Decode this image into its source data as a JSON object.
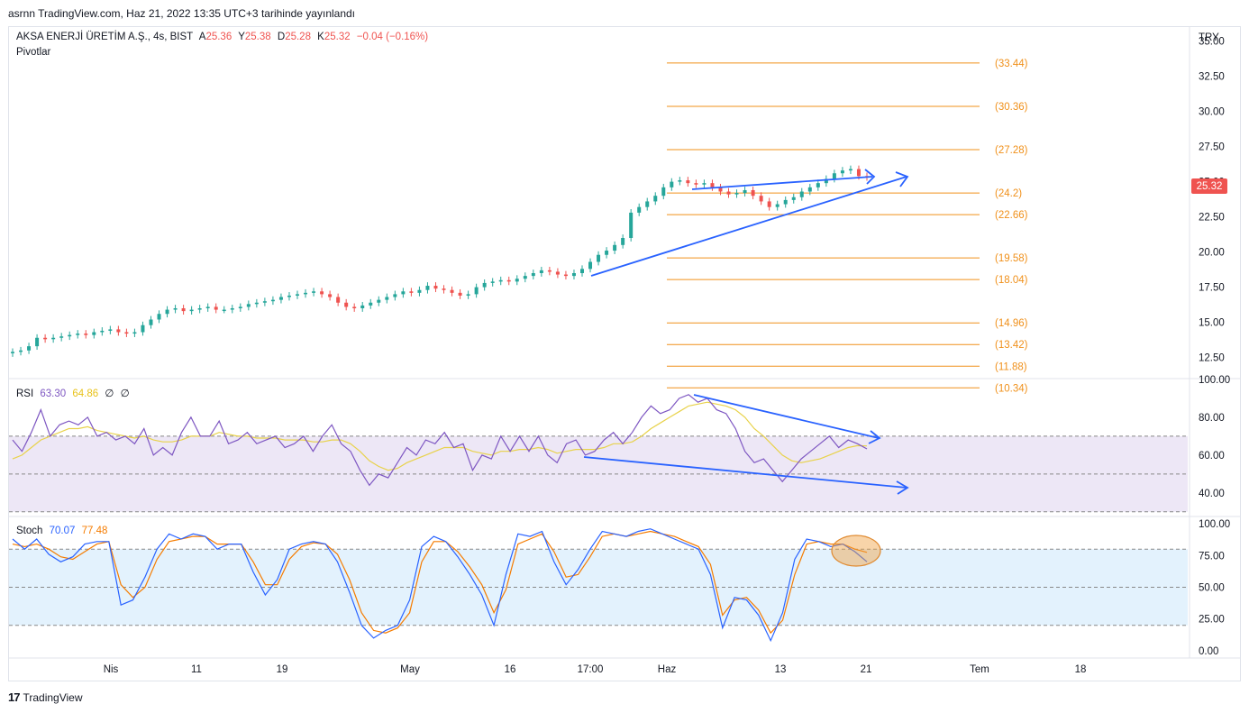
{
  "header": {
    "published": "asrnn TradingView.com, Haz 21, 2022 13:35 UTC+3 tarihinde yayınlandı"
  },
  "footer": {
    "brand": "TradingView"
  },
  "colors": {
    "up": "#26a69a",
    "down": "#ef5350",
    "pivot": "#f0901a",
    "trend": "#2962ff",
    "rsi": "#7e57c2",
    "rsi_ma": "#e8d24a",
    "stoch_k": "#2962ff",
    "stoch_d": "#f57c00",
    "rsi_bg": "#ede7f6",
    "stoch_bg": "#e3f2fd",
    "price_badge": "#ef5350"
  },
  "main": {
    "symbol": "AKSA ENERJİ ÜRETİM A.Ş., 4s, BIST",
    "o_label": "A",
    "o": "25.36",
    "h_label": "Y",
    "h": "25.38",
    "l_label": "D",
    "l": "25.28",
    "c_label": "K",
    "c": "25.32",
    "change": "−0.04 (−0.16%)",
    "indicator": "Pivotlar",
    "currency": "TRY",
    "last_price": "25.32"
  },
  "rsi": {
    "label": "RSI",
    "value": "63.30",
    "ma": "64.86",
    "extra1": "∅",
    "extra2": "∅"
  },
  "stoch": {
    "label": "Stoch",
    "k": "70.07",
    "d": "77.48"
  },
  "chart_data": [
    {
      "type": "candlestick",
      "title": "AKSA ENERJİ ÜRETİM A.Ş., 4s, BIST",
      "ylim": [
        11,
        36
      ],
      "price_ticks": [
        "35.00",
        "32.50",
        "30.00",
        "27.50",
        "25.00",
        "22.50",
        "20.00",
        "17.50",
        "15.00",
        "12.50"
      ],
      "x_ticks": [
        "Nis",
        "11",
        "19",
        "May",
        "16",
        "17:00",
        "Haz",
        "13",
        "21",
        "Tem",
        "18"
      ],
      "close_path": [
        12.9,
        13.0,
        13.3,
        13.9,
        13.8,
        13.9,
        14.0,
        14.1,
        14.2,
        14.1,
        14.3,
        14.4,
        14.5,
        14.3,
        14.2,
        14.3,
        14.8,
        15.2,
        15.6,
        15.9,
        16.0,
        15.8,
        15.9,
        16.0,
        16.1,
        15.9,
        15.9,
        16.0,
        16.1,
        16.3,
        16.4,
        16.5,
        16.6,
        16.8,
        16.9,
        17.0,
        17.1,
        17.2,
        17.0,
        16.8,
        16.4,
        16.1,
        16.0,
        16.2,
        16.4,
        16.6,
        16.8,
        17.0,
        17.2,
        17.1,
        17.3,
        17.6,
        17.4,
        17.3,
        17.1,
        16.9,
        17.0,
        17.5,
        17.8,
        17.9,
        18.0,
        17.9,
        18.1,
        18.3,
        18.5,
        18.7,
        18.6,
        18.4,
        18.3,
        18.5,
        18.8,
        19.3,
        19.8,
        20.1,
        20.5,
        21.0,
        22.8,
        23.2,
        23.6,
        24.0,
        24.6,
        25.0,
        25.1,
        24.9,
        24.8,
        24.9,
        24.6,
        24.3,
        24.1,
        24.2,
        24.4,
        24.0,
        23.6,
        23.2,
        23.4,
        23.7,
        23.9,
        24.3,
        24.6,
        24.9,
        25.2,
        25.6,
        25.8,
        25.9,
        25.4,
        25.32
      ],
      "pivot_levels": [
        {
          "label": "(33.44)",
          "value": 33.44
        },
        {
          "label": "(30.36)",
          "value": 30.36
        },
        {
          "label": "(27.28)",
          "value": 27.28
        },
        {
          "label": "(24.2)",
          "value": 24.2
        },
        {
          "label": "(22.66)",
          "value": 22.66
        },
        {
          "label": "(19.58)",
          "value": 19.58
        },
        {
          "label": "(18.04)",
          "value": 18.04
        },
        {
          "label": "(14.96)",
          "value": 14.96
        },
        {
          "label": "(13.42)",
          "value": 13.42
        },
        {
          "label": "(11.88)",
          "value": 11.88
        },
        {
          "label": "(10.34)",
          "value": 10.34
        }
      ],
      "last_price": 25.32
    },
    {
      "type": "line",
      "title": "RSI",
      "ylim": [
        28,
        100
      ],
      "y_ticks": [
        "100.00",
        "80.00",
        "60.00",
        "40.00"
      ],
      "bands": [
        70,
        50,
        30
      ],
      "series": [
        {
          "name": "RSI",
          "values": [
            68,
            62,
            72,
            84,
            70,
            76,
            78,
            76,
            80,
            70,
            72,
            68,
            70,
            66,
            74,
            60,
            64,
            60,
            72,
            80,
            70,
            70,
            78,
            66,
            68,
            72,
            66,
            68,
            70,
            64,
            66,
            70,
            62,
            70,
            76,
            66,
            62,
            52,
            44,
            50,
            48,
            56,
            64,
            60,
            68,
            66,
            72,
            64,
            66,
            52,
            60,
            58,
            70,
            62,
            70,
            62,
            70,
            60,
            56,
            66,
            68,
            60,
            62,
            68,
            72,
            66,
            72,
            80,
            86,
            82,
            84,
            90,
            92,
            88,
            90,
            84,
            82,
            74,
            62,
            56,
            58,
            52,
            46,
            52,
            58,
            62,
            66,
            70,
            64,
            68,
            66,
            63.3
          ]
        },
        {
          "name": "RSI MA",
          "values": [
            58,
            60,
            64,
            68,
            70,
            72,
            74,
            74,
            75,
            73,
            72,
            71,
            70,
            69,
            70,
            68,
            67,
            67,
            68,
            70,
            70,
            70,
            72,
            71,
            70,
            70,
            69,
            69,
            69,
            68,
            68,
            68,
            67,
            67,
            68,
            68,
            66,
            62,
            57,
            54,
            52,
            53,
            56,
            58,
            60,
            62,
            64,
            64,
            64,
            62,
            61,
            60,
            62,
            62,
            63,
            63,
            64,
            63,
            61,
            62,
            63,
            63,
            63,
            64,
            66,
            66,
            67,
            70,
            74,
            77,
            80,
            83,
            86,
            87,
            88,
            87,
            86,
            84,
            80,
            74,
            70,
            65,
            60,
            57,
            56,
            57,
            58,
            60,
            62,
            64,
            65,
            64.86
          ]
        }
      ]
    },
    {
      "type": "line",
      "title": "Stoch",
      "ylim": [
        -5,
        105
      ],
      "y_ticks": [
        "100.00",
        "75.00",
        "50.00",
        "25.00",
        "0.00"
      ],
      "bands": [
        80,
        50,
        20
      ],
      "series": [
        {
          "name": "%K",
          "values": [
            88,
            80,
            88,
            76,
            70,
            74,
            84,
            86,
            86,
            36,
            40,
            58,
            80,
            92,
            88,
            92,
            90,
            80,
            84,
            84,
            62,
            44,
            56,
            80,
            84,
            86,
            84,
            70,
            46,
            20,
            10,
            16,
            20,
            40,
            82,
            90,
            86,
            74,
            60,
            44,
            20,
            60,
            92,
            90,
            94,
            70,
            52,
            64,
            80,
            94,
            92,
            90,
            94,
            96,
            92,
            88,
            84,
            80,
            60,
            18,
            42,
            40,
            28,
            8,
            30,
            72,
            88,
            86,
            82,
            84,
            78,
            70.07
          ]
        },
        {
          "name": "%D",
          "values": [
            84,
            82,
            84,
            80,
            74,
            72,
            78,
            84,
            86,
            52,
            42,
            50,
            72,
            86,
            88,
            90,
            90,
            84,
            84,
            84,
            70,
            52,
            52,
            72,
            82,
            85,
            84,
            76,
            56,
            30,
            16,
            14,
            18,
            30,
            70,
            86,
            86,
            78,
            66,
            52,
            30,
            48,
            84,
            88,
            92,
            78,
            58,
            60,
            74,
            90,
            92,
            90,
            92,
            94,
            92,
            90,
            86,
            82,
            68,
            28,
            40,
            42,
            32,
            14,
            24,
            60,
            84,
            86,
            84,
            84,
            80,
            77.48
          ]
        }
      ]
    }
  ]
}
